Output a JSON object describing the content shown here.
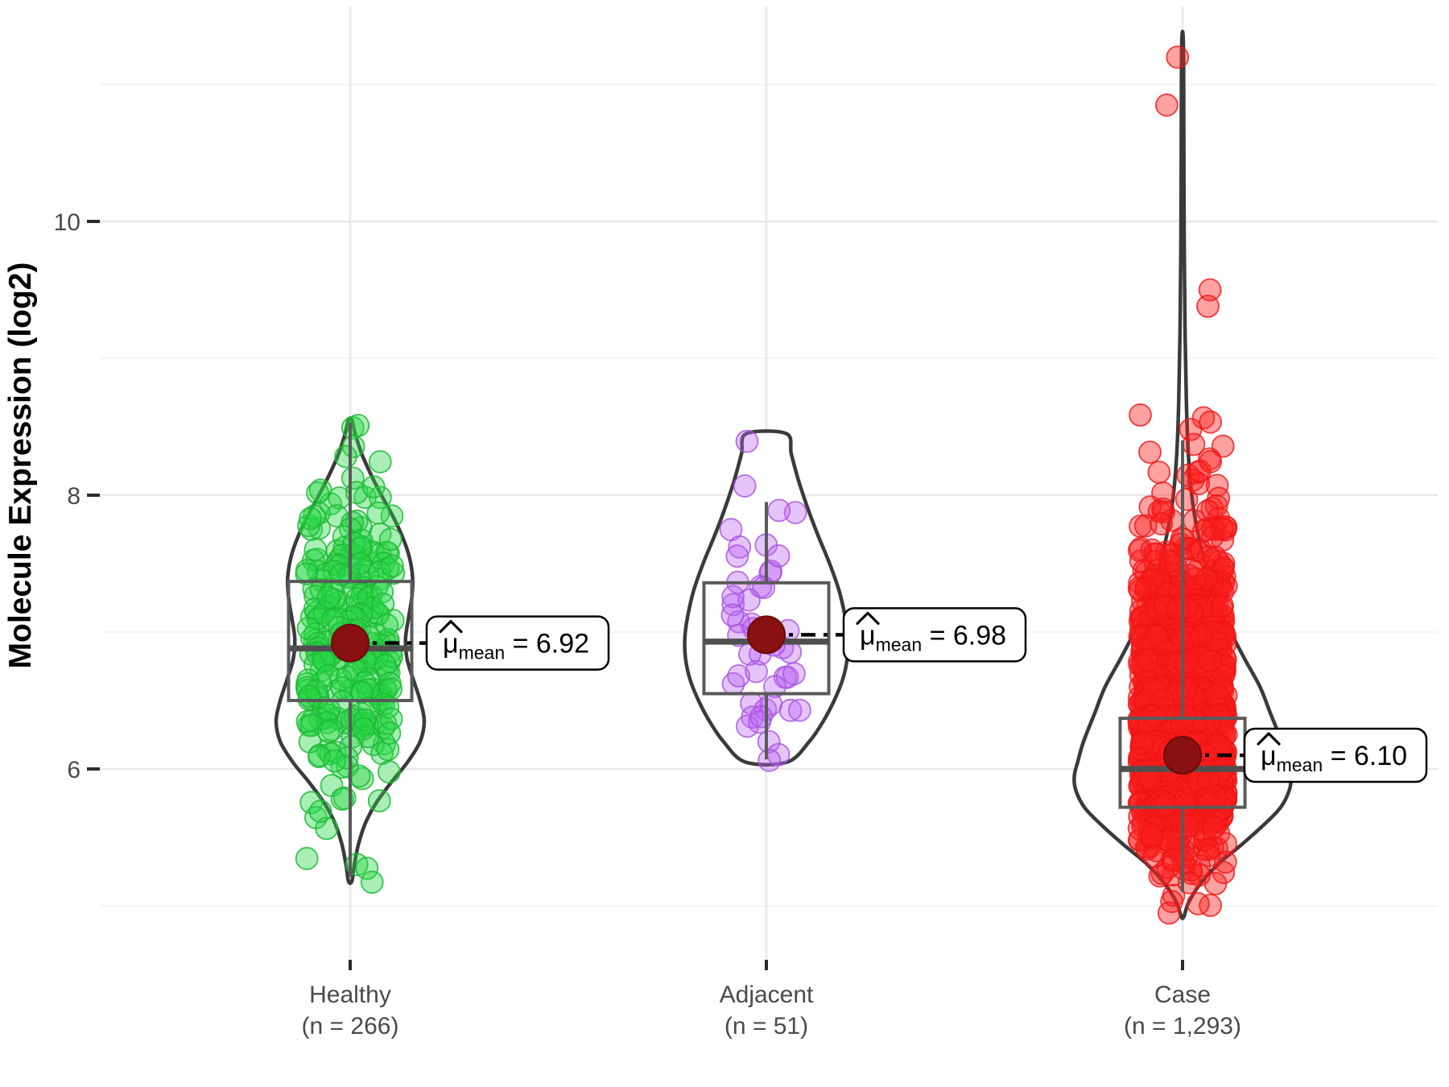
{
  "y_axis": {
    "title": "Molecule Expression (log2)",
    "ticks": [
      {
        "value": 6,
        "label": "6"
      },
      {
        "value": 8,
        "label": "8"
      },
      {
        "value": 10,
        "label": "10"
      }
    ],
    "minor_ticks": [
      5,
      7,
      9,
      11
    ],
    "range": [
      4.6,
      11.57
    ]
  },
  "style": {
    "grid_major": "#E7E7E7",
    "grid_minor": "#F2F2F2",
    "violin_stroke": "#3A3A3A",
    "violin_fill": "#FFFFFF",
    "box_stroke": "#5A5A5A",
    "median_stroke": "#4F4F4F",
    "mean_fill": "#8A1111",
    "mean_stroke": "#6B0C0C",
    "axis_text": "#4a4a4a",
    "tick_mark": "#2b2b2b",
    "dash_color": "#000000",
    "label_box_bg": "#FFFFFF",
    "label_box_border": "#000000"
  },
  "chart_data": {
    "type": "violin+box+jitter",
    "y_label": "Molecule Expression (log2)",
    "x_categories": [
      "Healthy",
      "Adjacent",
      "Case"
    ],
    "groups": [
      {
        "label": "Healthy",
        "n_label": "(n = 266)",
        "n": 266,
        "seed": 11,
        "mean": 6.92,
        "annotation": {
          "mu": "μ",
          "sub": "mean",
          "value_text": " = 6.92",
          "box_dx": 95
        },
        "box": {
          "q1": 6.5,
          "median": 6.88,
          "q3": 7.37,
          "whisker_low": 5.21,
          "whisker_high": 8.53,
          "half_width": 0.148
        },
        "jitter_half_width": 0.105,
        "point_fill": "rgba(40,215,70,0.40)",
        "point_stroke": "rgba(30,185,55,0.85)",
        "violin_profile": [
          [
            8.55,
            0.004
          ],
          [
            8.45,
            0.012
          ],
          [
            8.3,
            0.028
          ],
          [
            8.15,
            0.05
          ],
          [
            8.0,
            0.075
          ],
          [
            7.85,
            0.102
          ],
          [
            7.7,
            0.125
          ],
          [
            7.55,
            0.142
          ],
          [
            7.4,
            0.15
          ],
          [
            7.25,
            0.148
          ],
          [
            7.1,
            0.14
          ],
          [
            6.95,
            0.133
          ],
          [
            6.8,
            0.137
          ],
          [
            6.65,
            0.152
          ],
          [
            6.5,
            0.168
          ],
          [
            6.35,
            0.178
          ],
          [
            6.2,
            0.168
          ],
          [
            6.05,
            0.138
          ],
          [
            5.9,
            0.098
          ],
          [
            5.75,
            0.062
          ],
          [
            5.6,
            0.036
          ],
          [
            5.45,
            0.02
          ],
          [
            5.3,
            0.01
          ],
          [
            5.18,
            0.004
          ]
        ],
        "jitter_bands": [
          [
            8.4,
            8.58,
            2
          ],
          [
            8.1,
            8.4,
            4
          ],
          [
            7.9,
            8.1,
            8
          ],
          [
            7.7,
            7.9,
            14
          ],
          [
            7.5,
            7.7,
            22
          ],
          [
            7.3,
            7.5,
            28
          ],
          [
            7.1,
            7.3,
            30
          ],
          [
            6.9,
            7.1,
            30
          ],
          [
            6.7,
            6.9,
            30
          ],
          [
            6.5,
            6.7,
            32
          ],
          [
            6.3,
            6.5,
            30
          ],
          [
            6.1,
            6.3,
            16
          ],
          [
            5.9,
            6.1,
            8
          ],
          [
            5.7,
            5.9,
            5
          ],
          [
            5.5,
            5.7,
            3
          ],
          [
            5.3,
            5.5,
            2
          ],
          [
            5.15,
            5.3,
            2
          ]
        ],
        "outliers": []
      },
      {
        "label": "Adjacent",
        "n_label": "(n = 51)",
        "n": 51,
        "seed": 22,
        "mean": 6.98,
        "annotation": {
          "mu": "μ",
          "sub": "mean",
          "value_text": " = 6.98",
          "box_dx": 96
        },
        "box": {
          "q1": 6.55,
          "median": 6.93,
          "q3": 7.36,
          "whisker_low": 6.07,
          "whisker_high": 7.95,
          "half_width": 0.15
        },
        "jitter_half_width": 0.088,
        "point_fill": "rgba(186,100,243,0.38)",
        "point_stroke": "rgba(165,80,225,0.80)",
        "violin_profile": [
          [
            8.45,
            0.048
          ],
          [
            8.3,
            0.06
          ],
          [
            8.1,
            0.078
          ],
          [
            7.9,
            0.1
          ],
          [
            7.7,
            0.125
          ],
          [
            7.5,
            0.152
          ],
          [
            7.3,
            0.175
          ],
          [
            7.1,
            0.19
          ],
          [
            6.95,
            0.196
          ],
          [
            6.8,
            0.194
          ],
          [
            6.65,
            0.183
          ],
          [
            6.5,
            0.163
          ],
          [
            6.35,
            0.137
          ],
          [
            6.2,
            0.103
          ],
          [
            6.05,
            0.05
          ]
        ],
        "jitter_bands": [
          [
            8.3,
            8.45,
            1
          ],
          [
            8.0,
            8.3,
            1
          ],
          [
            7.8,
            8.0,
            2
          ],
          [
            7.6,
            7.8,
            3
          ],
          [
            7.4,
            7.6,
            4
          ],
          [
            7.2,
            7.4,
            6
          ],
          [
            7.0,
            7.2,
            7
          ],
          [
            6.8,
            7.0,
            8
          ],
          [
            6.6,
            6.8,
            7
          ],
          [
            6.4,
            6.6,
            5
          ],
          [
            6.2,
            6.4,
            4
          ],
          [
            6.05,
            6.2,
            3
          ]
        ],
        "outliers": []
      },
      {
        "label": "Case",
        "n_label": "(n = 1,293)",
        "n": 1293,
        "seed": 33,
        "mean": 6.1,
        "annotation": {
          "mu": "μ",
          "sub": "mean",
          "value_text": " = 6.10",
          "box_dx": 77
        },
        "box": {
          "q1": 5.72,
          "median": 6.0,
          "q3": 6.37,
          "whisker_low": 5.1,
          "whisker_high": 8.4,
          "half_width": 0.15
        },
        "jitter_half_width": 0.105,
        "point_fill": "rgba(250,30,30,0.42)",
        "point_stroke": "rgba(240,20,20,0.80)",
        "violin_profile": [
          [
            11.3,
            0.002
          ],
          [
            10.6,
            0.003
          ],
          [
            9.8,
            0.004
          ],
          [
            9.2,
            0.006
          ],
          [
            8.7,
            0.009
          ],
          [
            8.3,
            0.014
          ],
          [
            8.0,
            0.022
          ],
          [
            7.8,
            0.032
          ],
          [
            7.6,
            0.046
          ],
          [
            7.4,
            0.064
          ],
          [
            7.2,
            0.088
          ],
          [
            7.0,
            0.116
          ],
          [
            6.8,
            0.15
          ],
          [
            6.6,
            0.186
          ],
          [
            6.4,
            0.212
          ],
          [
            6.2,
            0.238
          ],
          [
            6.05,
            0.252
          ],
          [
            5.95,
            0.26
          ],
          [
            5.85,
            0.257
          ],
          [
            5.72,
            0.236
          ],
          [
            5.6,
            0.198
          ],
          [
            5.45,
            0.143
          ],
          [
            5.3,
            0.084
          ],
          [
            5.15,
            0.04
          ],
          [
            5.02,
            0.014
          ],
          [
            4.92,
            0.003
          ]
        ],
        "jitter_bands": [
          [
            8.4,
            8.7,
            4
          ],
          [
            8.2,
            8.4,
            5
          ],
          [
            8.0,
            8.2,
            8
          ],
          [
            7.8,
            8.0,
            12
          ],
          [
            7.6,
            7.8,
            20
          ],
          [
            7.4,
            7.6,
            35
          ],
          [
            7.2,
            7.4,
            60
          ],
          [
            7.0,
            7.2,
            90
          ],
          [
            6.8,
            7.0,
            115
          ],
          [
            6.6,
            6.8,
            135
          ],
          [
            6.4,
            6.6,
            150
          ],
          [
            6.2,
            6.4,
            160
          ],
          [
            6.0,
            6.2,
            160
          ],
          [
            5.8,
            6.0,
            150
          ],
          [
            5.6,
            5.8,
            115
          ],
          [
            5.4,
            5.6,
            45
          ],
          [
            5.2,
            5.4,
            18
          ],
          [
            5.0,
            5.2,
            6
          ],
          [
            4.92,
            5.0,
            1
          ]
        ],
        "outliers": [
          {
            "v": 11.2,
            "dx": -0.012
          },
          {
            "v": 10.85,
            "dx": -0.038
          },
          {
            "v": 9.5,
            "dx": 0.066
          },
          {
            "v": 9.38,
            "dx": 0.061
          }
        ]
      }
    ]
  }
}
